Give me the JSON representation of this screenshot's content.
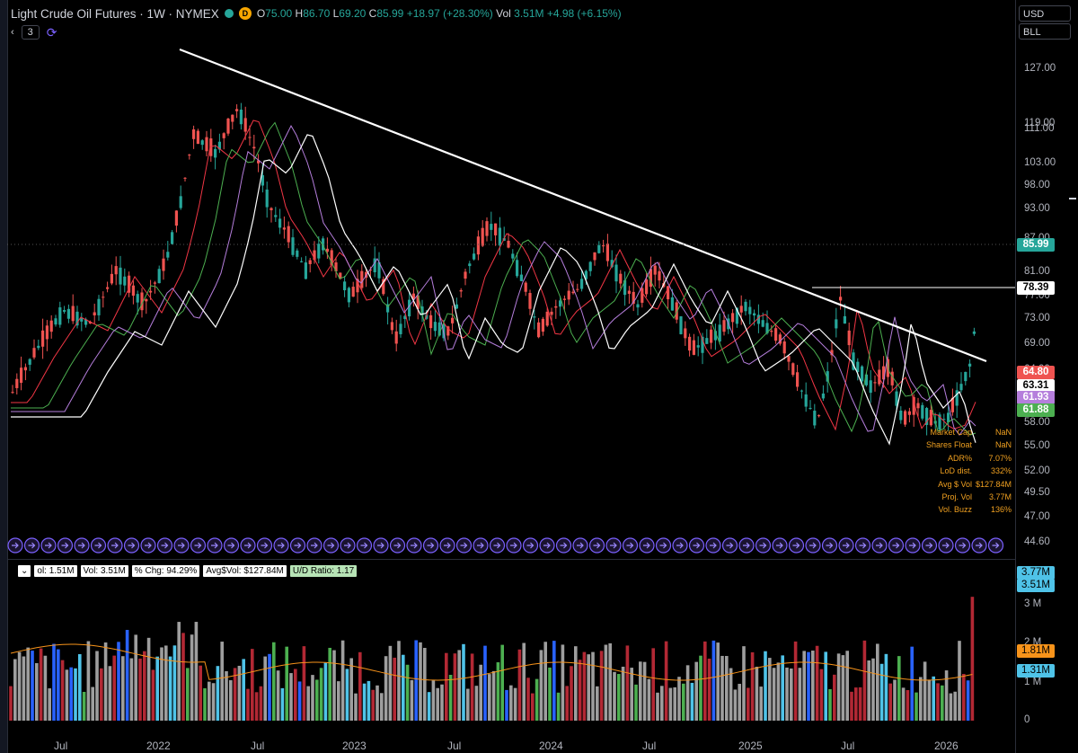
{
  "header": {
    "title": "Light Crude Oil Futures · 1W · NYMEX",
    "market_badge": "D",
    "o_label": "O",
    "o_value": "75.00",
    "h_label": "H",
    "h_value": "86.70",
    "l_label": "L",
    "l_value": "69.20",
    "c_label": "C",
    "c_value": "85.99",
    "change": "+18.97 (+28.30%)",
    "vol_label": "Vol",
    "vol_value": "3.51M",
    "vol_change": "+4.98 (+6.15%)",
    "collapse_glyph": "‹",
    "indicators_count": "3",
    "sync_glyph": "⟳"
  },
  "right_panel": {
    "currency": "USD",
    "unit": "BLL"
  },
  "colors": {
    "up": "#26a69a",
    "down": "#ef5350",
    "ma_red": "#f23645",
    "ma_green": "#4caf50",
    "ma_purple": "#b57edc",
    "ma_white": "#ffffff",
    "vol_avg_line": "#f7931a",
    "vol_blue": "#2962ff",
    "vol_cyan": "#4fc3e8",
    "vol_green": "#4caf50",
    "vol_red": "#b22834",
    "vol_gray": "#9e9e9e"
  },
  "price_axis": {
    "ticks": [
      "127.00",
      "119.00",
      "111.00",
      "103.00",
      "98.00",
      "93.00",
      "87.00",
      "81.00",
      "77.00",
      "73.00",
      "69.00",
      "64.00",
      "61.00",
      "58.00",
      "55.00",
      "52.00",
      "49.50",
      "47.00",
      "44.60"
    ],
    "labels": [
      {
        "text": "85.99",
        "bg": "#26a69a",
        "fg": "#ffffff"
      },
      {
        "text": "78.39",
        "bg": "#ffffff",
        "fg": "#000000"
      },
      {
        "text": "64.80",
        "bg": "#ef5350",
        "fg": "#ffffff"
      },
      {
        "text": "63.31",
        "bg": "#ffffff",
        "fg": "#000000"
      },
      {
        "text": "61.93",
        "bg": "#b57edc",
        "fg": "#ffffff"
      },
      {
        "text": "61.88",
        "bg": "#4caf50",
        "fg": "#ffffff"
      }
    ]
  },
  "volume_axis": {
    "ticks": [
      "3 M",
      "2 M",
      "1 M",
      "0"
    ],
    "labels": [
      {
        "text": "3.77M",
        "bg": "#4fc3e8",
        "fg": "#000000"
      },
      {
        "text": "3.51M",
        "bg": "#4fc3e8",
        "fg": "#000000"
      },
      {
        "text": "1.81M",
        "bg": "#f7931a",
        "fg": "#000000"
      },
      {
        "text": "1.31M",
        "bg": "#4fc3e8",
        "fg": "#000000"
      }
    ]
  },
  "date_axis": {
    "labels": [
      "Jul",
      "2022",
      "Jul",
      "2023",
      "Jul",
      "2024",
      "Jul",
      "2025",
      "Jul",
      "2026"
    ]
  },
  "stats_table": [
    {
      "k": "Market Cap",
      "v": "NaN"
    },
    {
      "k": "Shares Float",
      "v": "NaN"
    },
    {
      "k": "ADR%",
      "v": "7.07%"
    },
    {
      "k": "LoD dist.",
      "v": "332%"
    },
    {
      "k": "Avg $ Vol",
      "v": "$127.84M"
    },
    {
      "k": "Proj. Vol",
      "v": "3.77M"
    },
    {
      "k": "Vol. Buzz",
      "v": "136%"
    }
  ],
  "volume_legend": {
    "collapse": "⌄",
    "p1": "ol: 1.51M",
    "p2": "Vol: 3.51M",
    "p3": "% Chg: 94.29%",
    "p4": "Avg$Vol: $127.84M",
    "p5": "U/D Ratio: 1.17"
  }
}
